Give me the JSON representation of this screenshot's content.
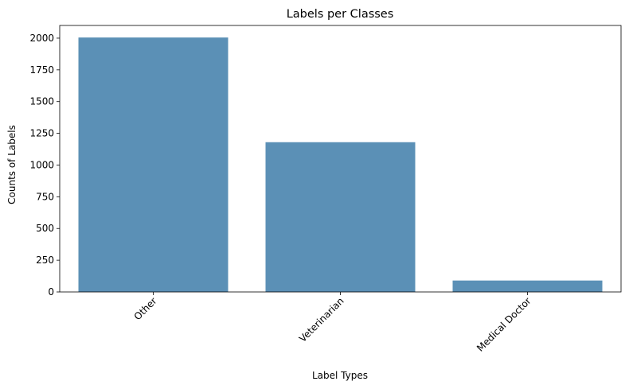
{
  "chart_data": {
    "type": "bar",
    "title": "Labels per Classes",
    "xlabel": "Label Types",
    "ylabel": "Counts of Labels",
    "categories": [
      "Other",
      "Veterinarian",
      "Medical Doctor"
    ],
    "values": [
      2005,
      1180,
      90
    ],
    "ylim": [
      0,
      2100
    ],
    "yticks": [
      0,
      250,
      500,
      750,
      1000,
      1250,
      1500,
      1750,
      2000
    ],
    "ytick_labels": [
      "0",
      "250",
      "500",
      "750",
      "1000",
      "1250",
      "1500",
      "1750",
      "2000"
    ],
    "x_tick_rotation_deg": 45,
    "grid": false,
    "legend": "none",
    "bar_color": "#5b90b6"
  }
}
